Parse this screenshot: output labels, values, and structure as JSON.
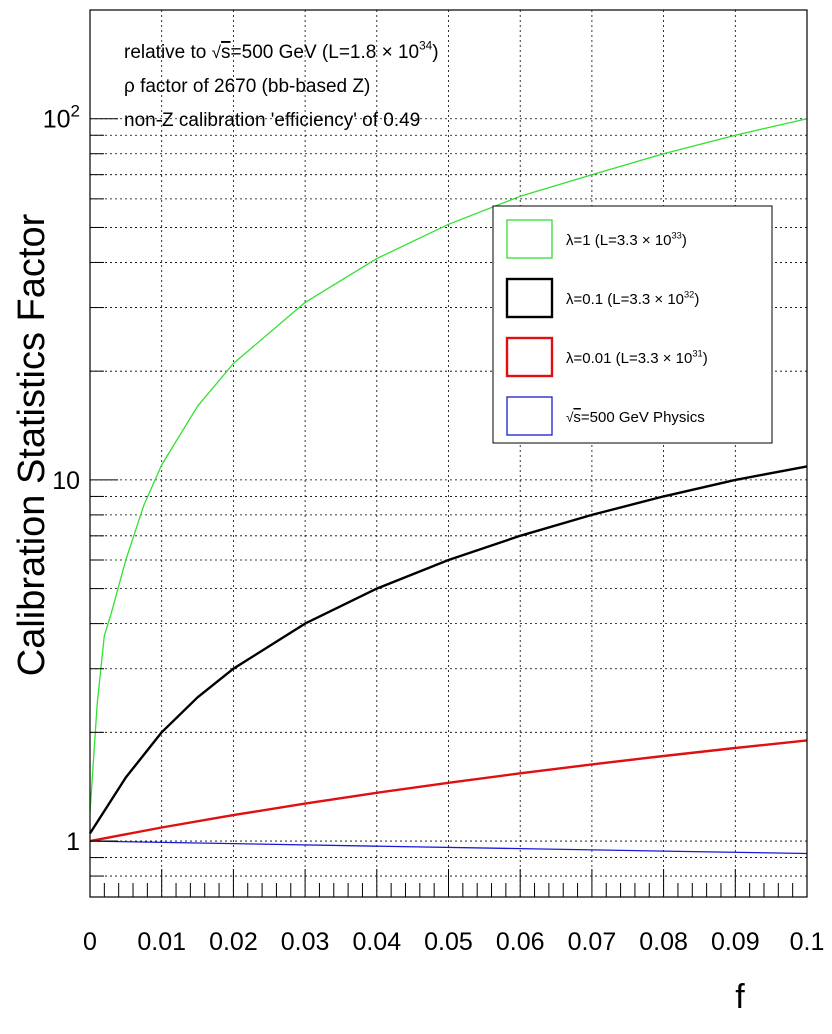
{
  "chart_data": {
    "type": "line",
    "title": "",
    "xlabel": "f",
    "ylabel": "Calibration Statistics Factor",
    "xlim": [
      0,
      0.1
    ],
    "ylim": [
      0.7,
      200
    ],
    "yscale": "log",
    "grid": true,
    "x_ticks": [
      "0",
      "0.01",
      "0.02",
      "0.03",
      "0.04",
      "0.05",
      "0.06",
      "0.07",
      "0.08",
      "0.09",
      "0.1"
    ],
    "y_ticks": [
      {
        "value": 1,
        "label": "1"
      },
      {
        "value": 10,
        "label": "10"
      },
      {
        "value": 100,
        "label": "10",
        "exp": "2"
      }
    ],
    "annotations": [
      {
        "pre": "relative to ",
        "sqrt": "s",
        "mid": "=500 GeV (L=1.8 × 10",
        "sup": "34",
        "post": ")"
      },
      {
        "pre": "ρ factor of 2670 (bb-based Z)"
      },
      {
        "pre": "non-Z calibration 'efficiency' of 0.49"
      }
    ],
    "legend": {
      "position": "upper-right",
      "entries": [
        {
          "series": 0,
          "pre": "λ=1 (L=3.3 × 10",
          "sup": "33",
          "post": ")"
        },
        {
          "series": 1,
          "pre": "λ=0.1 (L=3.3 × 10",
          "sup": "32",
          "post": ")"
        },
        {
          "series": 2,
          "pre": "λ=0.01 (L=3.3 × 10",
          "sup": "31",
          "post": ")"
        },
        {
          "series": 3,
          "sqrt": "s",
          "post": "=500 GeV Physics"
        }
      ]
    },
    "series": [
      {
        "color": "#33e033",
        "width": 1.3,
        "x": [
          0,
          0.001,
          0.002,
          0.003,
          0.005,
          0.0075,
          0.01,
          0.015,
          0.02,
          0.03,
          0.04,
          0.05,
          0.06,
          0.07,
          0.08,
          0.09,
          0.1
        ],
        "y": [
          1.2,
          2.4,
          3.7,
          4.3,
          6.0,
          8.5,
          11,
          16,
          21,
          31,
          41,
          51,
          61,
          70,
          80,
          90,
          100
        ]
      },
      {
        "color": "#000000",
        "width": 2.4,
        "x": [
          0,
          0.005,
          0.01,
          0.015,
          0.02,
          0.03,
          0.04,
          0.05,
          0.06,
          0.07,
          0.08,
          0.09,
          0.1
        ],
        "y": [
          1.05,
          1.5,
          2.0,
          2.5,
          3.0,
          4.0,
          5.0,
          6.0,
          7.0,
          8.0,
          9.0,
          10.0,
          10.9
        ]
      },
      {
        "color": "#e01010",
        "width": 2.4,
        "x": [
          0,
          0.01,
          0.02,
          0.03,
          0.04,
          0.05,
          0.06,
          0.07,
          0.08,
          0.09,
          0.1
        ],
        "y": [
          1.0,
          1.09,
          1.18,
          1.27,
          1.36,
          1.45,
          1.54,
          1.63,
          1.72,
          1.81,
          1.9
        ]
      },
      {
        "color": "#1a1ad6",
        "width": 1.3,
        "x": [
          0,
          0.02,
          0.04,
          0.06,
          0.08,
          0.1
        ],
        "y": [
          1.0,
          0.984,
          0.968,
          0.953,
          0.938,
          0.924
        ]
      }
    ]
  }
}
